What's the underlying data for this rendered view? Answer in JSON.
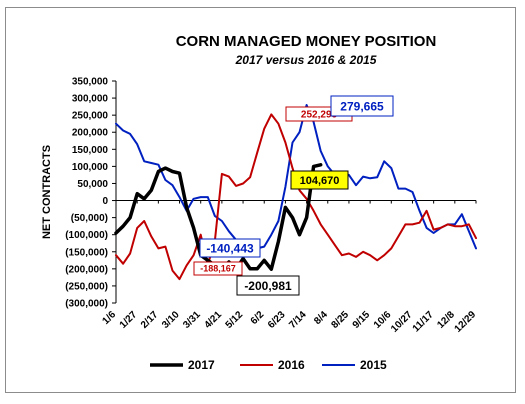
{
  "chart_data": {
    "type": "line",
    "title": "CORN MANAGED MONEY POSITION",
    "subtitle": "2017 versus 2016 & 2015",
    "xlabel": "",
    "ylabel": "NET CONTRACTS",
    "ylim": [
      -300000,
      350000
    ],
    "yticks": [
      350000,
      300000,
      250000,
      200000,
      150000,
      100000,
      50000,
      0,
      -50000,
      -100000,
      -150000,
      -200000,
      -250000,
      -300000
    ],
    "ytick_labels": [
      "350,000",
      "300,000",
      "250,000",
      "200,000",
      "150,000",
      "100,000",
      "50,000",
      "0",
      "(50,000)",
      "(100,000)",
      "(150,000)",
      "(200,000)",
      "(250,000)",
      "(300,000)"
    ],
    "grid": false,
    "legend": "bottom",
    "x_count": 52,
    "x_tick_labels": [
      {
        "index": 0,
        "label": "1/6"
      },
      {
        "index": 3,
        "label": "1/27"
      },
      {
        "index": 6,
        "label": "2/17"
      },
      {
        "index": 9,
        "label": "3/10"
      },
      {
        "index": 12,
        "label": "3/31"
      },
      {
        "index": 15,
        "label": "4/21"
      },
      {
        "index": 18,
        "label": "5/12"
      },
      {
        "index": 21,
        "label": "6/2"
      },
      {
        "index": 24,
        "label": "6/23"
      },
      {
        "index": 27,
        "label": "7/14"
      },
      {
        "index": 30,
        "label": "8/4"
      },
      {
        "index": 33,
        "label": "8/25"
      },
      {
        "index": 36,
        "label": "9/15"
      },
      {
        "index": 39,
        "label": "10/6"
      },
      {
        "index": 42,
        "label": "10/27"
      },
      {
        "index": 45,
        "label": "11/17"
      },
      {
        "index": 48,
        "label": "12/8"
      },
      {
        "index": 51,
        "label": "12/29"
      }
    ],
    "series": [
      {
        "name": "2017",
        "color": "#000000",
        "width": 3.5,
        "values": [
          -95000,
          -75000,
          -50000,
          20000,
          5000,
          30000,
          85000,
          95000,
          85000,
          80000,
          -20000,
          -80000,
          -160000,
          -175000,
          -190000,
          -200000,
          -180000,
          -200981,
          -170000,
          -200000,
          -200000,
          -175000,
          -200981,
          -120000,
          -20000,
          -50000,
          -100000,
          -50000,
          100000,
          104670
        ]
      },
      {
        "name": "2016",
        "color": "#c00000",
        "width": 2,
        "values": [
          -160000,
          -185000,
          -155000,
          -80000,
          -60000,
          -105000,
          -140000,
          -135000,
          -205000,
          -230000,
          -190000,
          -160000,
          -100000,
          -188167,
          -120000,
          78000,
          70000,
          43000,
          50000,
          68000,
          140000,
          210000,
          252295,
          225000,
          170000,
          95000,
          30000,
          5000,
          -30000,
          -70000,
          -100000,
          -130000,
          -160000,
          -155000,
          -165000,
          -150000,
          -160000,
          -175000,
          -160000,
          -140000,
          -105000,
          -70000,
          -70000,
          -65000,
          -30000,
          -85000,
          -80000,
          -70000,
          -75000,
          -75000,
          -70000,
          -110000
        ]
      },
      {
        "name": "2015",
        "color": "#0020c0",
        "width": 2,
        "values": [
          225000,
          205000,
          195000,
          165000,
          115000,
          110000,
          105000,
          60000,
          45000,
          10000,
          -30000,
          5000,
          10000,
          10000,
          -45000,
          -60000,
          -90000,
          -115000,
          -140443,
          -130000,
          -140000,
          -135000,
          -100000,
          -60000,
          40000,
          170000,
          200000,
          279665,
          230000,
          145000,
          100000,
          75000,
          75000,
          75000,
          45000,
          70000,
          65000,
          68000,
          115000,
          95000,
          35000,
          35000,
          25000,
          -30000,
          -80000,
          -95000,
          -80000,
          -70000,
          -70000,
          -40000,
          -90000,
          -140000
        ]
      }
    ],
    "annotations": [
      {
        "label": "252,295",
        "series": "2016",
        "index": 22,
        "color": "#c00000"
      },
      {
        "label": "279,665",
        "series": "2015",
        "index": 27,
        "color": "#0020c0"
      },
      {
        "label": "104,670",
        "series": "2017",
        "index": 29,
        "color": "#000000"
      },
      {
        "label": "-140,443",
        "series": "2015",
        "index": 18,
        "color": "#0020c0"
      },
      {
        "label": "-188,167",
        "series": "2016",
        "index": 13,
        "color": "#c00000"
      },
      {
        "label": "-200,981",
        "series": "2017",
        "index": 22,
        "color": "#000000"
      }
    ]
  }
}
